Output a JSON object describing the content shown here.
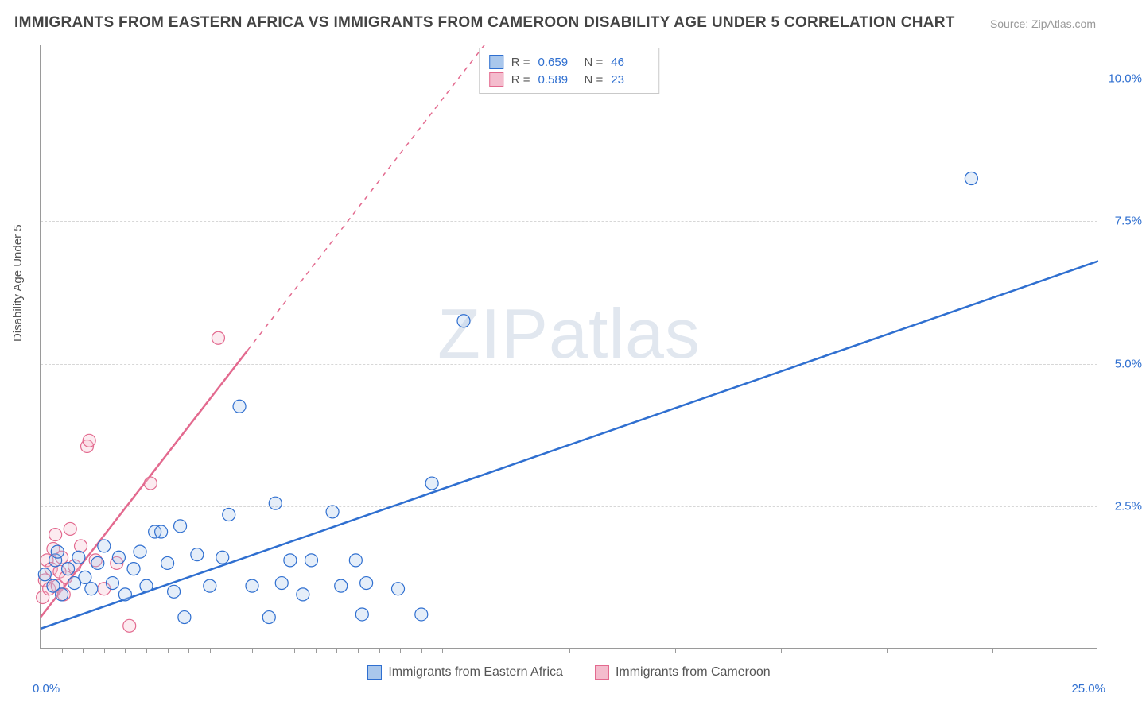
{
  "title": "IMMIGRANTS FROM EASTERN AFRICA VS IMMIGRANTS FROM CAMEROON DISABILITY AGE UNDER 5 CORRELATION CHART",
  "source": "Source: ZipAtlas.com",
  "watermark_text": "ZIPatlas",
  "y_axis_label": "Disability Age Under 5",
  "chart": {
    "type": "scatter",
    "xlim": [
      0,
      25
    ],
    "ylim": [
      0,
      10.6
    ],
    "x_ticks": [
      0,
      25
    ],
    "x_tick_labels": [
      "0.0%",
      "25.0%"
    ],
    "x_minor_ticks": [
      0.5,
      1,
      1.5,
      2,
      2.5,
      3,
      3.5,
      4,
      4.5,
      5,
      5.5,
      6,
      6.5,
      7,
      7.5,
      8,
      8.5,
      9,
      9.5,
      10,
      12.5,
      15,
      17.5,
      20,
      22.5
    ],
    "y_ticks": [
      2.5,
      5.0,
      7.5,
      10.0
    ],
    "y_tick_labels": [
      "2.5%",
      "5.0%",
      "7.5%",
      "10.0%"
    ],
    "background_color": "#ffffff",
    "grid_color": "#d7d7d7",
    "axis_color": "#9a9a9a",
    "tick_label_color": "#2f6fd0",
    "marker_radius": 8,
    "marker_stroke_width": 1.2,
    "marker_fill_opacity": 0.3,
    "trend_line_width": 2.5,
    "trend_dash_solid_split_x": 4.9
  },
  "series": [
    {
      "name": "Immigrants from Eastern Africa",
      "color_stroke": "#2f6fd0",
      "color_fill": "#a9c7ec",
      "r_value": "0.659",
      "n_value": "46",
      "trend": {
        "x1": 0,
        "y1": 0.35,
        "x2": 25,
        "y2": 6.8
      },
      "points": [
        [
          0.1,
          1.3
        ],
        [
          0.3,
          1.1
        ],
        [
          0.35,
          1.55
        ],
        [
          0.4,
          1.7
        ],
        [
          0.5,
          0.95
        ],
        [
          0.65,
          1.4
        ],
        [
          0.8,
          1.15
        ],
        [
          0.9,
          1.6
        ],
        [
          1.05,
          1.25
        ],
        [
          1.2,
          1.05
        ],
        [
          1.35,
          1.5
        ],
        [
          1.5,
          1.8
        ],
        [
          1.7,
          1.15
        ],
        [
          1.85,
          1.6
        ],
        [
          2.0,
          0.95
        ],
        [
          2.2,
          1.4
        ],
        [
          2.35,
          1.7
        ],
        [
          2.5,
          1.1
        ],
        [
          2.7,
          2.05
        ],
        [
          2.85,
          2.05
        ],
        [
          3.0,
          1.5
        ],
        [
          3.15,
          1.0
        ],
        [
          3.3,
          2.15
        ],
        [
          3.4,
          0.55
        ],
        [
          3.7,
          1.65
        ],
        [
          4.0,
          1.1
        ],
        [
          4.3,
          1.6
        ],
        [
          4.45,
          2.35
        ],
        [
          4.7,
          4.25
        ],
        [
          5.0,
          1.1
        ],
        [
          5.4,
          0.55
        ],
        [
          5.55,
          2.55
        ],
        [
          5.7,
          1.15
        ],
        [
          5.9,
          1.55
        ],
        [
          6.2,
          0.95
        ],
        [
          6.4,
          1.55
        ],
        [
          6.9,
          2.4
        ],
        [
          7.1,
          1.1
        ],
        [
          7.45,
          1.55
        ],
        [
          7.6,
          0.6
        ],
        [
          7.7,
          1.15
        ],
        [
          8.45,
          1.05
        ],
        [
          9.0,
          0.6
        ],
        [
          9.25,
          2.9
        ],
        [
          10.0,
          5.75
        ],
        [
          22.0,
          8.25
        ]
      ]
    },
    {
      "name": "Immigrants from Cameroon",
      "color_stroke": "#e36a8f",
      "color_fill": "#f4bccd",
      "r_value": "0.589",
      "n_value": "23",
      "trend": {
        "x1": 0,
        "y1": 0.55,
        "x2": 10.5,
        "y2": 10.6
      },
      "points": [
        [
          0.05,
          0.9
        ],
        [
          0.1,
          1.2
        ],
        [
          0.15,
          1.55
        ],
        [
          0.2,
          1.05
        ],
        [
          0.25,
          1.4
        ],
        [
          0.3,
          1.75
        ],
        [
          0.35,
          2.0
        ],
        [
          0.4,
          1.1
        ],
        [
          0.45,
          1.35
        ],
        [
          0.5,
          1.6
        ],
        [
          0.55,
          0.95
        ],
        [
          0.6,
          1.25
        ],
        [
          0.7,
          2.1
        ],
        [
          0.8,
          1.45
        ],
        [
          0.95,
          1.8
        ],
        [
          1.1,
          3.55
        ],
        [
          1.15,
          3.65
        ],
        [
          1.3,
          1.55
        ],
        [
          1.5,
          1.05
        ],
        [
          1.8,
          1.5
        ],
        [
          2.1,
          0.4
        ],
        [
          2.6,
          2.9
        ],
        [
          4.2,
          5.45
        ]
      ]
    }
  ],
  "legend_top": {
    "r_label": "R =",
    "n_label": "N ="
  },
  "legend_bottom": [
    {
      "swatch_stroke": "#2f6fd0",
      "swatch_fill": "#a9c7ec",
      "label": "Immigrants from Eastern Africa"
    },
    {
      "swatch_stroke": "#e36a8f",
      "swatch_fill": "#f4bccd",
      "label": "Immigrants from Cameroon"
    }
  ]
}
